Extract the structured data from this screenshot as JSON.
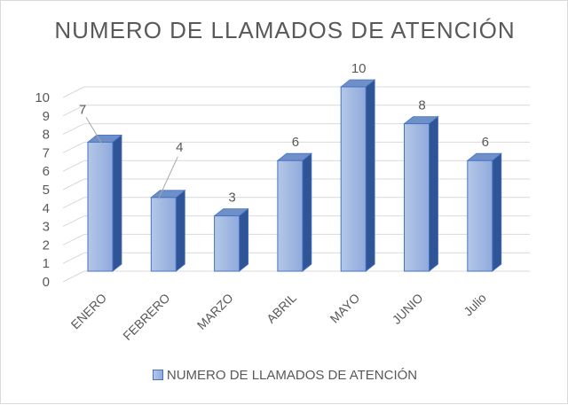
{
  "chart_data": {
    "type": "bar",
    "title": "NUMERO DE LLAMADOS DE ATENCIÓN",
    "categories": [
      "ENERO",
      "FEBRERO",
      "MARZO",
      "ABRIL",
      "MAYO",
      "JUNIO",
      "Julio"
    ],
    "series": [
      {
        "name": "NUMERO DE LLAMADOS DE ATENCIÓN",
        "values": [
          7,
          4,
          3,
          6,
          10,
          8,
          6
        ]
      }
    ],
    "ylim": [
      0,
      10
    ],
    "yticks": [
      0,
      1,
      2,
      3,
      4,
      5,
      6,
      7,
      8,
      9,
      10
    ],
    "grid": true,
    "legend": "bottom",
    "style": "3d-column",
    "colors": {
      "bar_front_light": "#b4c7e7",
      "bar_front_dark": "#8faadc",
      "bar_side": "#2f5597",
      "bar_top": "#6f8fc9",
      "bar_border": "#4472c4",
      "grid": "#d9d9d9",
      "text": "#595959"
    }
  }
}
